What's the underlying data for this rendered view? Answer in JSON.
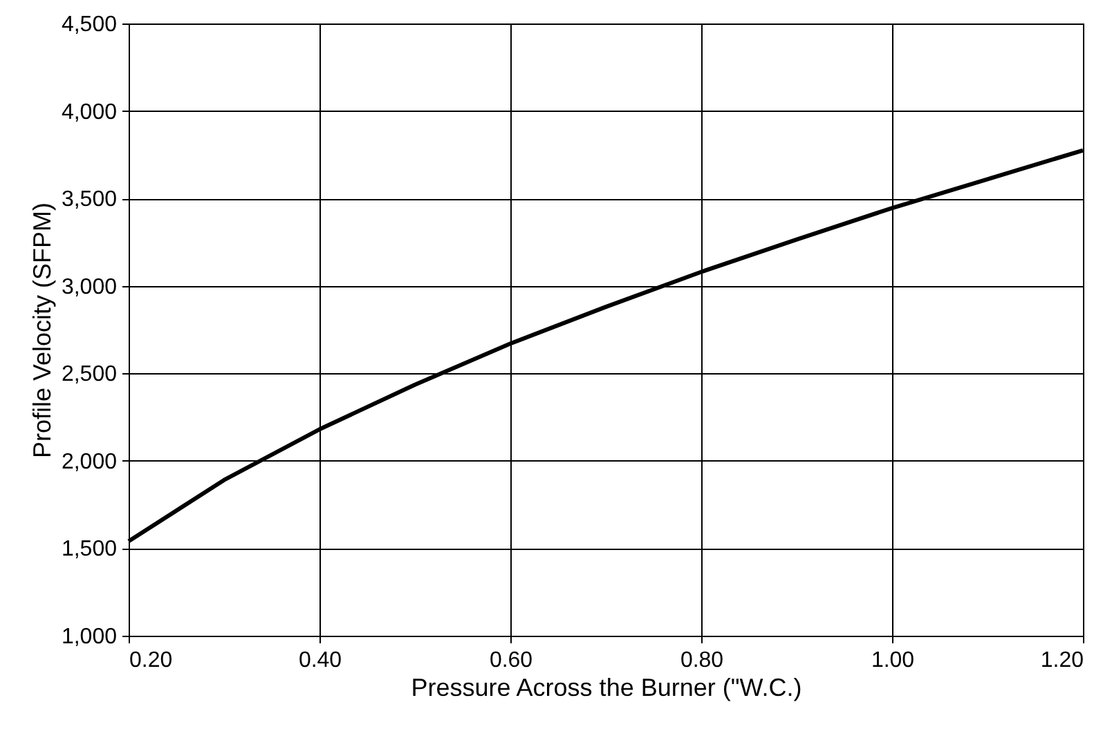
{
  "chart_data": {
    "type": "line",
    "xlabel": "Pressure Across the Burner (\"W.C.)",
    "ylabel": "Profile Velocity (SFPM)",
    "x": [
      0.2,
      0.3,
      0.4,
      0.5,
      0.6,
      0.7,
      0.8,
      0.9,
      1.0,
      1.1,
      1.2
    ],
    "series": [
      {
        "color": "#000000",
        "values": [
          1540,
          1890,
          2180,
          2435,
          2670,
          2880,
          3080,
          3265,
          3445,
          3610,
          3775
        ]
      }
    ],
    "xlim": [
      0.2,
      1.2
    ],
    "xticks": [
      {
        "value": 0.2,
        "label": "0.20"
      },
      {
        "value": 0.4,
        "label": "0.40"
      },
      {
        "value": 0.6,
        "label": "0.60"
      },
      {
        "value": 0.8,
        "label": "0.80"
      },
      {
        "value": 1.0,
        "label": "1.00"
      },
      {
        "value": 1.2,
        "label": "1.20"
      }
    ],
    "ylim": [
      1000,
      4500
    ],
    "yticks": [
      {
        "value": 1000,
        "label": "1,000"
      },
      {
        "value": 1500,
        "label": "1,500"
      },
      {
        "value": 2000,
        "label": "2,000"
      },
      {
        "value": 2500,
        "label": "2,500"
      },
      {
        "value": 3000,
        "label": "3,000"
      },
      {
        "value": 3500,
        "label": "3,500"
      },
      {
        "value": 4000,
        "label": "4,000"
      },
      {
        "value": 4500,
        "label": "4,500"
      }
    ],
    "grid": true
  }
}
